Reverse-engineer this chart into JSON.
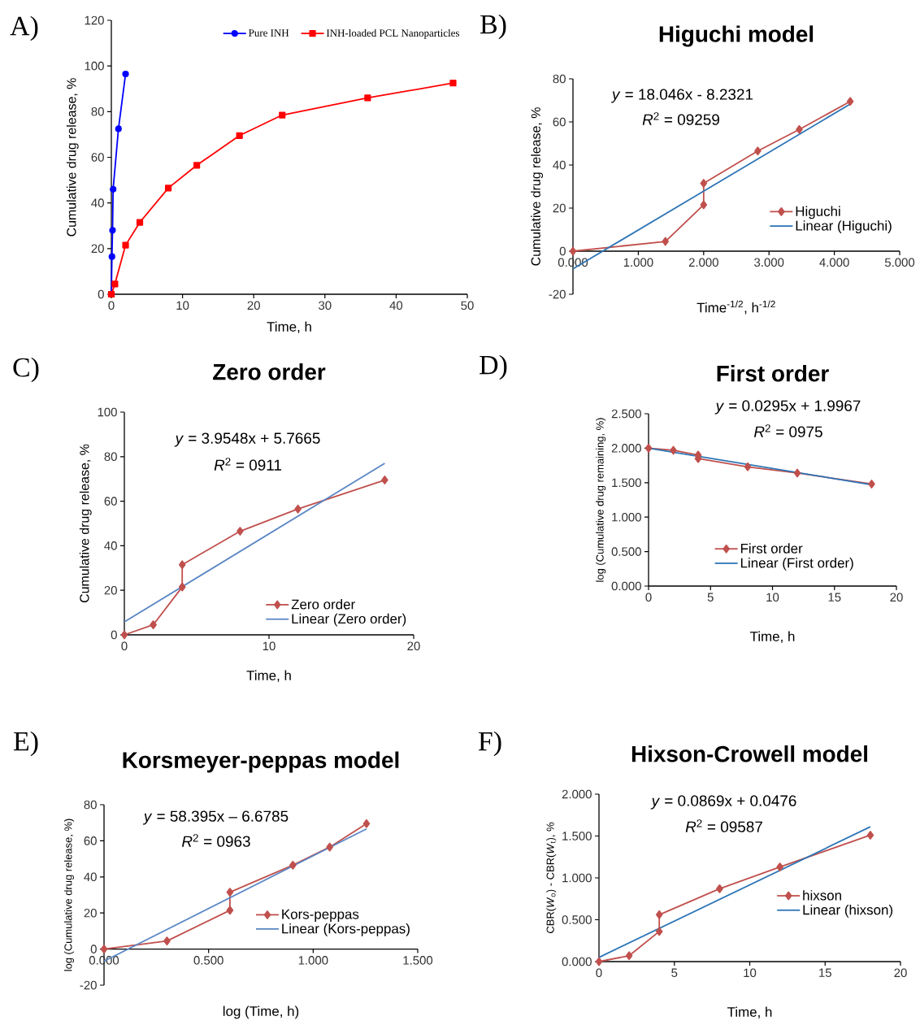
{
  "chart_data": [
    {
      "type": "line",
      "xlabel": "Time, h",
      "ylabel": "Cumulative drug release, %",
      "xlim": [
        0,
        50
      ],
      "ylim": [
        0,
        120
      ],
      "xticks": [
        0,
        10,
        20,
        30,
        40,
        50
      ],
      "yticks": [
        0,
        20,
        40,
        60,
        80,
        100,
        120
      ],
      "legend": "top right",
      "annotations": [
        "A)"
      ],
      "series": [
        {
          "name": "Pure INH",
          "color": "#0000ff",
          "marker": "circle",
          "x": [
            0,
            0.083,
            0.167,
            0.25,
            1,
            2
          ],
          "values": [
            0,
            16.5,
            28,
            46,
            72.5,
            96.5
          ]
        },
        {
          "name": "INH-loaded PCL Nanoparticles",
          "color": "#ff0000",
          "marker": "square",
          "x": [
            0,
            0.5,
            2,
            4,
            8,
            12,
            18,
            24,
            36,
            48
          ],
          "values": [
            0,
            4.5,
            21.5,
            31.5,
            46.5,
            56.5,
            69.5,
            78.5,
            86,
            92.5
          ]
        }
      ]
    },
    {
      "type": "line",
      "title": "Higuchi model",
      "xlabel": "Time$^{-1/2}$, h$^{-1/2}$",
      "ylabel": "Cumulative drug release, %",
      "xlim": [
        0,
        5
      ],
      "ylim": [
        -20,
        80
      ],
      "xticks": [
        {
          "value": 0,
          "label": "0.000"
        },
        {
          "value": 1,
          "label": "1.000"
        },
        {
          "value": 2,
          "label": "2.000"
        },
        {
          "value": 3,
          "label": "3.000"
        },
        {
          "value": 4,
          "label": "4.000"
        },
        {
          "value": 5,
          "label": "5.000"
        }
      ],
      "yticks": [
        -20,
        0,
        20,
        40,
        60,
        80
      ],
      "legend": "right",
      "annotations": [
        "B)",
        "*y* = 18.046x - 8.2321",
        "*R*$^{2}$ = 09259"
      ],
      "series": [
        {
          "name": "Higuchi",
          "color": "#c0504d",
          "marker": "diamond",
          "x": [
            0,
            1.414,
            2,
            2,
            2.828,
            3.464,
            4.243
          ],
          "values": [
            0,
            4.5,
            21.5,
            31.5,
            46.5,
            56.5,
            69.5
          ]
        },
        {
          "name": "Linear (Higuchi)",
          "color": "#2e75b6",
          "marker": "none",
          "x": [
            0,
            4.243
          ],
          "values": [
            -8.2,
            68.3
          ]
        }
      ]
    },
    {
      "type": "line",
      "title": "Zero order",
      "xlabel": "Time, h",
      "ylabel": "Cumulative drug release, %",
      "xlim": [
        0,
        20
      ],
      "ylim": [
        0,
        100
      ],
      "xticks": [
        0,
        10,
        20
      ],
      "yticks": [
        0,
        20,
        40,
        60,
        80,
        100
      ],
      "legend": "bottom right",
      "annotations": [
        "C)",
        "*y* = 3.9548x + 5.7665",
        "*R*$^{2}$ = 0911"
      ],
      "series": [
        {
          "name": "Zero order",
          "color": "#c0504d",
          "marker": "diamond",
          "x": [
            0,
            2,
            4,
            4,
            8,
            12,
            18
          ],
          "values": [
            0,
            4.5,
            21.5,
            31.5,
            46.5,
            56.5,
            69.5
          ]
        },
        {
          "name": "Linear (Zero order)",
          "color": "#5b87c5",
          "marker": "none",
          "x": [
            0,
            18
          ],
          "values": [
            5.8,
            77.0
          ]
        }
      ]
    },
    {
      "type": "line",
      "title": "First order",
      "xlabel": "Time, h",
      "ylabel": "log (Cumulative drug remaining, %)",
      "xlim": [
        0,
        20
      ],
      "ylim": [
        0,
        2.5
      ],
      "xticks": [
        0,
        5,
        10,
        15,
        20
      ],
      "yticks": [
        {
          "value": 0,
          "label": "0.000"
        },
        {
          "value": 0.5,
          "label": "0.500"
        },
        {
          "value": 1,
          "label": "1.000"
        },
        {
          "value": 1.5,
          "label": "1.500"
        },
        {
          "value": 2,
          "label": "2.000"
        },
        {
          "value": 2.5,
          "label": "2.500"
        }
      ],
      "legend": "bottom",
      "annotations": [
        "D)",
        "*y* = 0.0295x + 1.9967",
        "*R*$^{2}$ = 0975"
      ],
      "series": [
        {
          "name": "First order",
          "color": "#c0504d",
          "marker": "diamond",
          "x": [
            0,
            2,
            4,
            4,
            8,
            12,
            18
          ],
          "values": [
            2.0,
            1.97,
            1.9,
            1.85,
            1.73,
            1.64,
            1.48
          ]
        },
        {
          "name": "Linear (First order)",
          "color": "#2e75b6",
          "marker": "none",
          "x": [
            0,
            18
          ],
          "values": [
            2.0,
            1.47
          ]
        }
      ]
    },
    {
      "type": "line",
      "title": "Korsmeyer-peppas model",
      "xlabel": "log (Time, h)",
      "ylabel": "log (Cumulative drug release, %)",
      "xlim": [
        0,
        1.5
      ],
      "ylim": [
        -20,
        80
      ],
      "xticks": [
        {
          "value": 0,
          "label": "0.000"
        },
        {
          "value": 0.5,
          "label": "0.500"
        },
        {
          "value": 1,
          "label": "1.000"
        },
        {
          "value": 1.5,
          "label": "1.500"
        }
      ],
      "yticks": [
        -20,
        0,
        20,
        40,
        60,
        80
      ],
      "legend": "right",
      "annotations": [
        "E)",
        "*y* = 58.395x – 6.6785",
        "*R*$^{2}$ = 0963"
      ],
      "series": [
        {
          "name": "Kors-peppas",
          "color": "#c0504d",
          "marker": "diamond",
          "x": [
            0,
            0.301,
            0.602,
            0.602,
            0.903,
            1.079,
            1.255
          ],
          "values": [
            0,
            4.5,
            21.5,
            31.5,
            46.5,
            56.5,
            69.5
          ]
        },
        {
          "name": "Linear (Kors-peppas)",
          "color": "#5b87c5",
          "marker": "none",
          "x": [
            0,
            1.255
          ],
          "values": [
            -6.7,
            66.6
          ]
        }
      ]
    },
    {
      "type": "line",
      "title": "Hixson-Crowell model",
      "xlabel": "Time, h",
      "ylabel": "CBR(*W*$_{o}$) - CBR(*W*$_{t}$), %",
      "xlim": [
        0,
        20
      ],
      "ylim": [
        0,
        2
      ],
      "xticks": [
        0,
        5,
        10,
        15,
        20
      ],
      "yticks": [
        {
          "value": 0,
          "label": "0.000"
        },
        {
          "value": 0.5,
          "label": "0.500"
        },
        {
          "value": 1,
          "label": "1.000"
        },
        {
          "value": 1.5,
          "label": "1.500"
        },
        {
          "value": 2,
          "label": "2.000"
        }
      ],
      "legend": "right",
      "annotations": [
        "F)",
        "*y* = 0.0869x + 0.0476",
        "*R*$^{2}$ = 09587"
      ],
      "series": [
        {
          "name": "hixson",
          "color": "#c0504d",
          "marker": "diamond",
          "x": [
            0,
            2,
            4,
            4,
            8,
            12,
            18
          ],
          "values": [
            0,
            0.07,
            0.36,
            0.56,
            0.87,
            1.13,
            1.51
          ]
        },
        {
          "name": "Linear (hixson)",
          "color": "#2e75b6",
          "marker": "none",
          "x": [
            0,
            18
          ],
          "values": [
            0.05,
            1.61
          ]
        }
      ]
    }
  ]
}
